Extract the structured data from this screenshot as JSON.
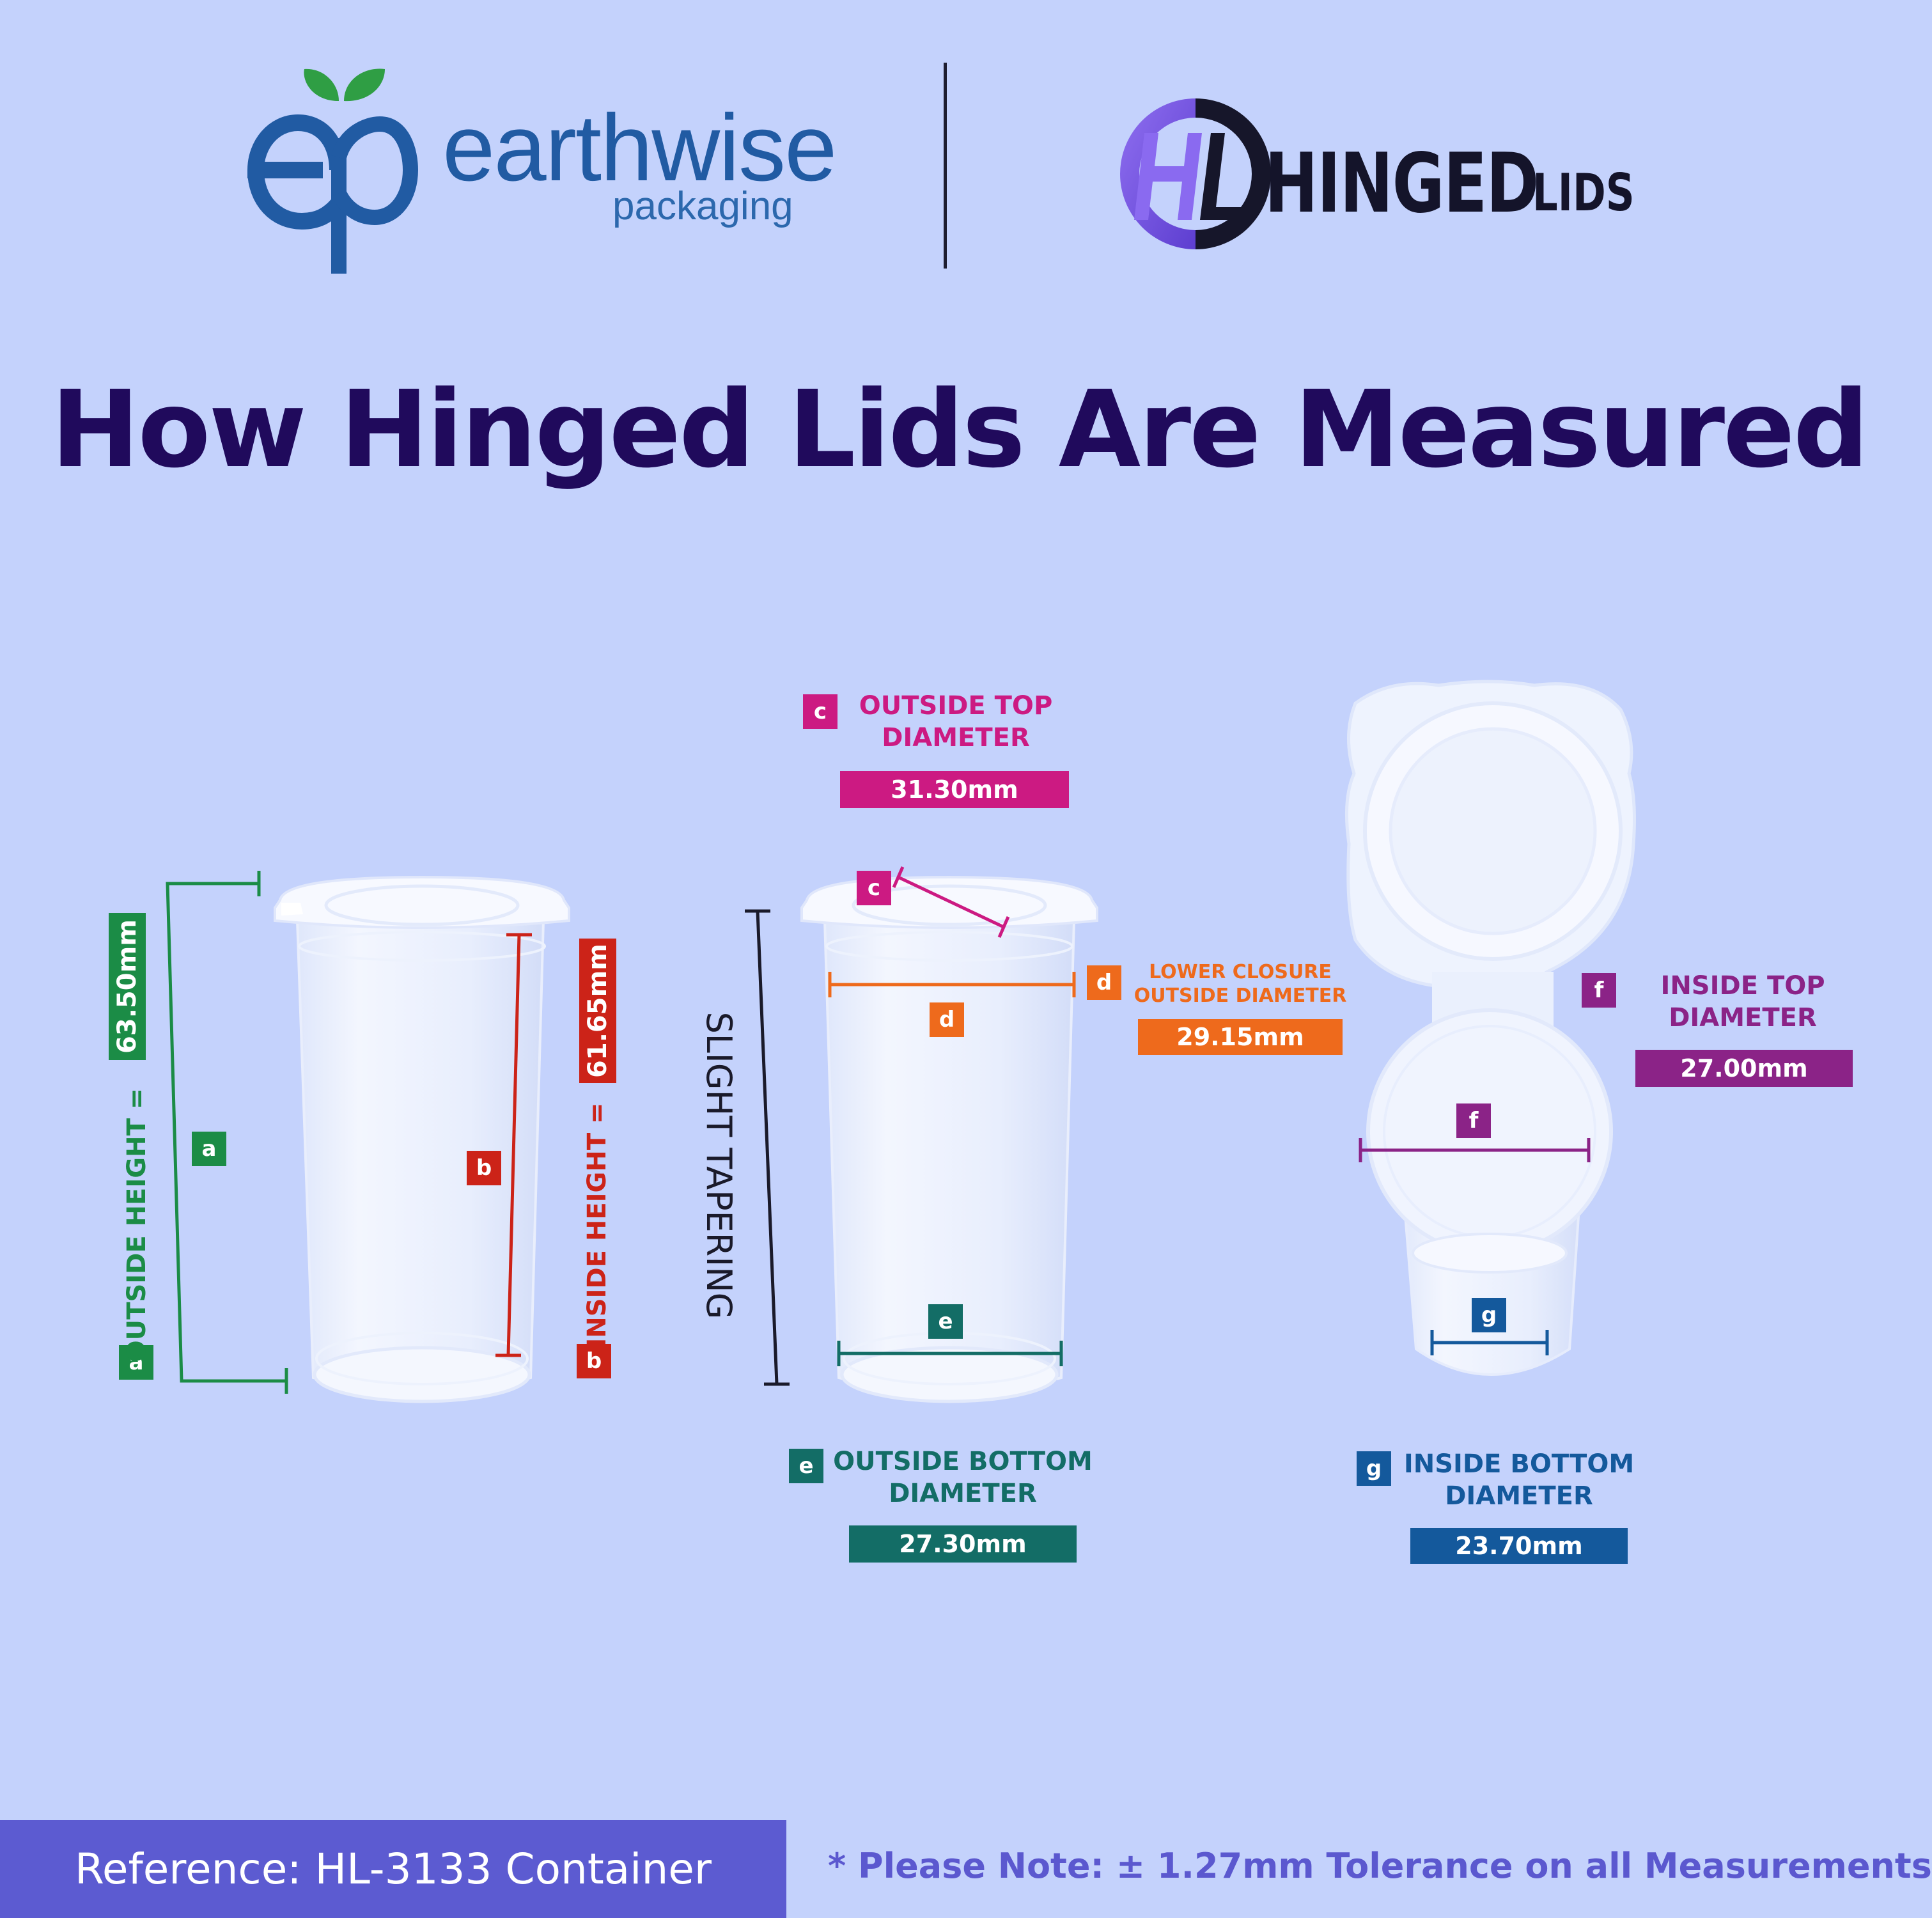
{
  "header": {
    "earthwise_logo": {
      "monogram": "ep",
      "wordmark": "earthwise",
      "subtitle": "packaging",
      "leaf_icon": "leaf-icon"
    },
    "hinged_logo": {
      "monogram": "HL",
      "wordmark": "HINGED",
      "suffix": "LIDS"
    }
  },
  "title": "How Hinged Lids Are Measured",
  "measurements": {
    "a": {
      "letter": "a",
      "label": "OUTSIDE HEIGHT =",
      "value": "63.50mm"
    },
    "b": {
      "letter": "b",
      "label": "INSIDE HEIGHT =",
      "value": "61.65mm"
    },
    "c": {
      "letter": "c",
      "label_line1": "OUTSIDE TOP",
      "label_line2": "DIAMETER",
      "value": "31.30mm"
    },
    "d": {
      "letter": "d",
      "label_line1": "LOWER CLOSURE",
      "label_line2": "OUTSIDE DIAMETER",
      "value": "29.15mm"
    },
    "e": {
      "letter": "e",
      "label_line1": "OUTSIDE BOTTOM",
      "label_line2": "DIAMETER",
      "value": "27.30mm"
    },
    "f": {
      "letter": "f",
      "label_line1": "INSIDE TOP",
      "label_line2": "DIAMETER",
      "value": "27.00mm"
    },
    "g": {
      "letter": "g",
      "label_line1": "INSIDE BOTTOM",
      "label_line2": "DIAMETER",
      "value": "23.70mm"
    }
  },
  "tapering_label": "SLIGHT TAPERING",
  "colors": {
    "a": "#1b8c46",
    "b": "#cc2318",
    "c": "#cc1a82",
    "d": "#ee6a1c",
    "e": "#136d66",
    "f": "#8b2387",
    "g": "#14599c",
    "title": "#200a5c",
    "background": "#c4d2fc"
  },
  "footer": {
    "reference": "Reference: HL-3133 Container",
    "note": "* Please Note: ± 1.27mm Tolerance on all Measurements"
  }
}
